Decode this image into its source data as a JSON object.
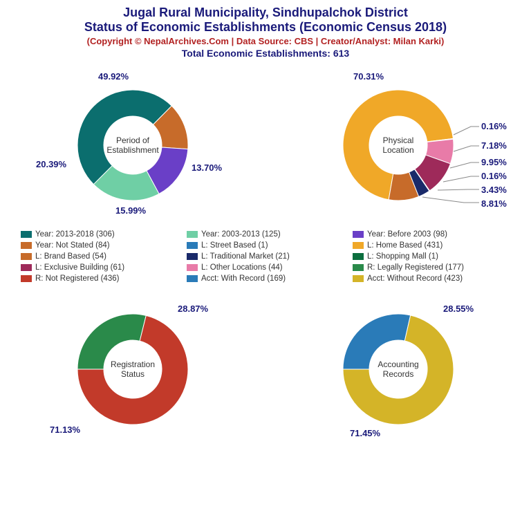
{
  "header": {
    "title1": "Jugal Rural Municipality, Sindhupalchok District",
    "title2": "Status of Economic Establishments (Economic Census 2018)",
    "copyright": "(Copyright © NepalArchives.Com | Data Source: CBS | Creator/Analyst: Milan Karki)",
    "total": "Total Economic Establishments: 613"
  },
  "chart_style": {
    "outer_radius": 80,
    "inner_radius": 42,
    "background": "#ffffff",
    "label_color": "#1a1a7a",
    "label_fontsize": 13,
    "center_label_fontsize": 12
  },
  "charts": {
    "period": {
      "title": "Period of\nEstablishment",
      "slices": [
        {
          "label": "49.92%",
          "value": 49.92,
          "color": "#0b6e6e"
        },
        {
          "label": "13.70%",
          "value": 13.7,
          "color": "#c76b2a"
        },
        {
          "label": "15.99%",
          "value": 15.99,
          "color": "#6a3fc7"
        },
        {
          "label": "20.39%",
          "value": 20.39,
          "color": "#6fcfa5"
        }
      ],
      "start_angle": -135
    },
    "location": {
      "title": "Physical\nLocation",
      "slices": [
        {
          "label": "70.31%",
          "value": 70.31,
          "color": "#f0a828"
        },
        {
          "label": "0.16%",
          "value": 0.16,
          "color": "#2a7bb8"
        },
        {
          "label": "7.18%",
          "value": 7.18,
          "color": "#e87ba8"
        },
        {
          "label": "9.95%",
          "value": 9.95,
          "color": "#9e2a5a"
        },
        {
          "label": "0.16%",
          "value": 0.16,
          "color": "#0b6e3e"
        },
        {
          "label": "3.43%",
          "value": 3.43,
          "color": "#1a2a6a"
        },
        {
          "label": "8.81%",
          "value": 8.81,
          "color": "#c76b2a"
        }
      ],
      "start_angle": -170
    },
    "registration": {
      "title": "Registration\nStatus",
      "slices": [
        {
          "label": "28.87%",
          "value": 28.87,
          "color": "#2a8a4a"
        },
        {
          "label": "71.13%",
          "value": 71.13,
          "color": "#c23a2a"
        }
      ],
      "start_angle": -90
    },
    "accounting": {
      "title": "Accounting\nRecords",
      "slices": [
        {
          "label": "28.55%",
          "value": 28.55,
          "color": "#2a7bb8"
        },
        {
          "label": "71.45%",
          "value": 71.45,
          "color": "#d4b428"
        }
      ],
      "start_angle": -90
    }
  },
  "legend": [
    {
      "text": "Year: 2013-2018 (306)",
      "color": "#0b6e6e"
    },
    {
      "text": "Year: 2003-2013 (125)",
      "color": "#6fcfa5"
    },
    {
      "text": "Year: Before 2003 (98)",
      "color": "#6a3fc7"
    },
    {
      "text": "Year: Not Stated (84)",
      "color": "#c76b2a"
    },
    {
      "text": "L: Street Based (1)",
      "color": "#2a7bb8"
    },
    {
      "text": "L: Home Based (431)",
      "color": "#f0a828"
    },
    {
      "text": "L: Brand Based (54)",
      "color": "#c76b2a"
    },
    {
      "text": "L: Traditional Market (21)",
      "color": "#1a2a6a"
    },
    {
      "text": "L: Shopping Mall (1)",
      "color": "#0b6e3e"
    },
    {
      "text": "L: Exclusive Building (61)",
      "color": "#9e2a5a"
    },
    {
      "text": "L: Other Locations (44)",
      "color": "#e87ba8"
    },
    {
      "text": "R: Legally Registered (177)",
      "color": "#2a8a4a"
    },
    {
      "text": "R: Not Registered (436)",
      "color": "#c23a2a"
    },
    {
      "text": "Acct: With Record (169)",
      "color": "#2a7bb8"
    },
    {
      "text": "Acct: Without Record (423)",
      "color": "#d4b428"
    }
  ]
}
